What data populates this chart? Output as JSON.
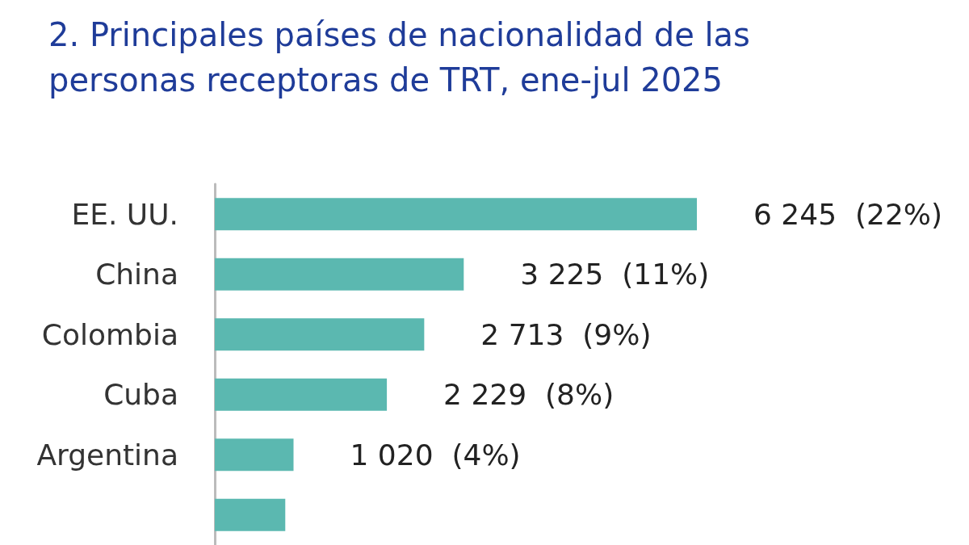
{
  "chart_data": {
    "type": "bar",
    "orientation": "horizontal",
    "title": "2. Principales países de nacionalidad de las\npersonas receptoras de TRT, ene-jul 2025",
    "categories": [
      "EE. UU.",
      "China",
      "Colombia",
      "Cuba",
      "Argentina",
      null
    ],
    "values": [
      6245,
      3225,
      2713,
      2229,
      1020,
      913
    ],
    "value_labels": [
      "6 245  (22%)",
      "3 225  (11%)",
      "2 713  (9%)",
      "2 229  (8%)",
      "1 020  (4%)",
      null
    ],
    "color": "#5bb8b0"
  }
}
